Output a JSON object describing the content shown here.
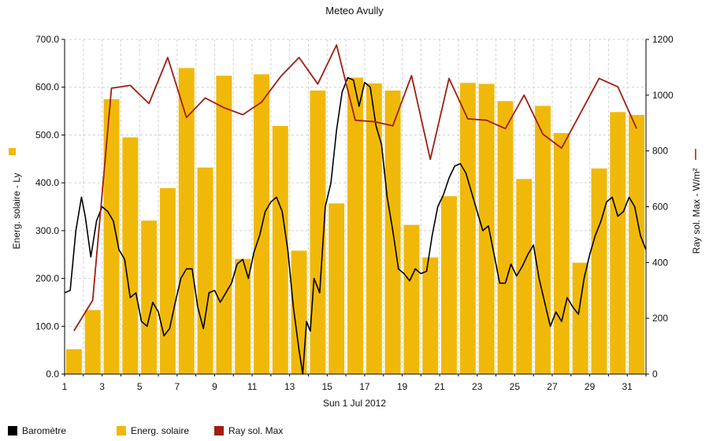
{
  "chart_data": {
    "type": "bar",
    "title": "Meteo  Avully",
    "xlabel": "Sun 1 Jul 2012",
    "ylabel_left": "Energ. solaire - Ly",
    "ylabel_right": "Ray sol. Max - W/m²",
    "ylim_left": [
      0,
      700
    ],
    "ylim_right": [
      0,
      1200
    ],
    "yticks_left": [
      "0.0",
      "100.0",
      "200.0",
      "300.0",
      "400.0",
      "500.0",
      "600.0",
      "700.0"
    ],
    "yticks_right": [
      "0",
      "200",
      "400",
      "600",
      "800",
      "1000",
      "1200"
    ],
    "xlim": [
      1,
      32
    ],
    "xticks": [
      "1",
      "3",
      "5",
      "7",
      "9",
      "11",
      "13",
      "15",
      "17",
      "19",
      "21",
      "23",
      "25",
      "27",
      "29",
      "31"
    ],
    "grid": true,
    "legend_placement": "bottom",
    "colors": {
      "bar": "#f0b90a",
      "ray": "#a01e14",
      "baro": "#000000",
      "grid": "#d0d0d0"
    },
    "series": [
      {
        "name": "Energ. solaire",
        "kind": "bar",
        "axis": "left",
        "x": [
          1.5,
          2.5,
          3.5,
          4.5,
          5.5,
          6.5,
          7.5,
          8.5,
          9.5,
          10.5,
          11.5,
          12.5,
          13.5,
          14.5,
          15.5,
          16.5,
          17.5,
          18.5,
          19.5,
          20.5,
          21.5,
          22.5,
          23.5,
          24.5,
          25.5,
          26.5,
          27.5,
          28.5,
          29.5,
          30.5,
          31.5
        ],
        "values": [
          52,
          134,
          575,
          495,
          321,
          389,
          640,
          432,
          624,
          241,
          627,
          519,
          258,
          593,
          357,
          620,
          608,
          593,
          312,
          244,
          372,
          609,
          607,
          571,
          408,
          561,
          504,
          233,
          430,
          548,
          542
        ]
      },
      {
        "name": "Ray sol. Max",
        "kind": "line",
        "axis": "right",
        "x": [
          1.5,
          2.5,
          3.5,
          4.5,
          5.5,
          6.5,
          7.5,
          8.5,
          9.5,
          10.5,
          11.5,
          12.5,
          13.5,
          14.5,
          15.5,
          16.5,
          17.5,
          18.5,
          19.5,
          20.5,
          21.5,
          22.5,
          23.5,
          24.5,
          25.5,
          26.5,
          27.5,
          28.5,
          29.5,
          30.5,
          31.5
        ],
        "values": [
          155,
          265,
          1025,
          1035,
          970,
          1135,
          920,
          990,
          955,
          930,
          975,
          1065,
          1135,
          1040,
          1180,
          910,
          905,
          890,
          1070,
          770,
          1060,
          915,
          910,
          880,
          1000,
          860,
          810,
          935,
          1060,
          1030,
          880
        ]
      },
      {
        "name": "Baromètre",
        "kind": "line",
        "axis": "left",
        "x": [
          1.0,
          1.3,
          1.6,
          1.9,
          2.1,
          2.4,
          2.7,
          3.0,
          3.3,
          3.6,
          3.9,
          4.2,
          4.5,
          4.8,
          5.1,
          5.4,
          5.7,
          6.0,
          6.3,
          6.6,
          6.9,
          7.2,
          7.5,
          7.8,
          8.1,
          8.4,
          8.7,
          9.0,
          9.3,
          9.6,
          9.9,
          10.2,
          10.5,
          10.8,
          11.1,
          11.4,
          11.7,
          12.0,
          12.3,
          12.6,
          12.9,
          13.2,
          13.5,
          13.7,
          13.9,
          14.1,
          14.3,
          14.6,
          14.9,
          15.2,
          15.5,
          15.8,
          16.1,
          16.4,
          16.7,
          17.0,
          17.3,
          17.6,
          17.9,
          18.2,
          18.5,
          18.8,
          19.1,
          19.4,
          19.7,
          20.0,
          20.3,
          20.6,
          20.9,
          21.2,
          21.5,
          21.8,
          22.1,
          22.4,
          22.7,
          23.0,
          23.3,
          23.6,
          23.9,
          24.2,
          24.5,
          24.8,
          25.1,
          25.4,
          25.7,
          26.0,
          26.3,
          26.6,
          26.9,
          27.2,
          27.5,
          27.8,
          28.1,
          28.4,
          28.7,
          29.0,
          29.3,
          29.6,
          29.9,
          30.2,
          30.5,
          30.8,
          31.1,
          31.4,
          31.7,
          32.0
        ],
        "values": [
          170,
          175,
          300,
          370,
          330,
          245,
          320,
          350,
          340,
          320,
          260,
          240,
          160,
          170,
          110,
          100,
          150,
          130,
          80,
          95,
          150,
          200,
          220,
          220,
          140,
          95,
          170,
          175,
          150,
          170,
          190,
          230,
          240,
          200,
          255,
          290,
          340,
          360,
          370,
          340,
          260,
          140,
          50,
          0,
          110,
          90,
          200,
          170,
          350,
          400,
          510,
          590,
          620,
          615,
          560,
          610,
          600,
          520,
          480,
          370,
          300,
          220,
          210,
          195,
          220,
          210,
          215,
          290,
          350,
          375,
          410,
          435,
          440,
          420,
          380,
          340,
          300,
          310,
          250,
          190,
          190,
          230,
          205,
          225,
          250,
          270,
          200,
          150,
          100,
          130,
          110,
          160,
          140,
          125,
          200,
          250,
          290,
          320,
          360,
          370,
          330,
          340,
          370,
          350,
          290,
          260
        ]
      }
    ]
  }
}
